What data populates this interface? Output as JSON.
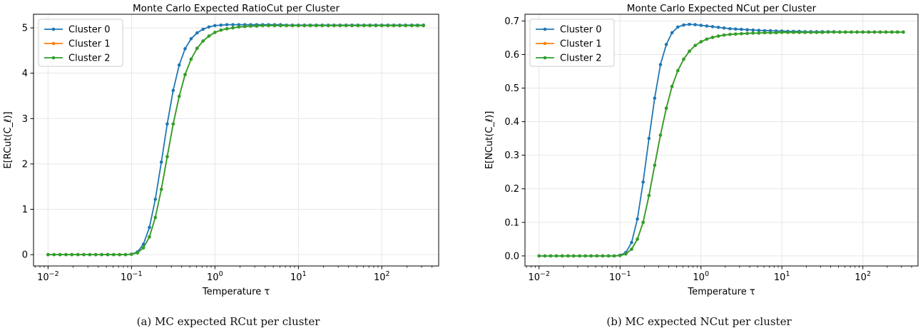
{
  "captions": {
    "left": "(a) MC expected RCut per cluster",
    "right": "(b) MC expected NCut per cluster"
  },
  "colors": {
    "Cluster 0": "#1f77b4",
    "Cluster 1": "#ff7f0e",
    "Cluster 2": "#2ca02c",
    "grid": "#e6e6e6",
    "axis": "#000000"
  },
  "chart_data": [
    {
      "type": "line",
      "title": "Monte Carlo Expected RatioCut per Cluster",
      "xlabel": "Temperature τ",
      "ylabel": "E[RCut(C_ℓ)]",
      "xscale": "log",
      "xlim": [
        0.0067,
        480
      ],
      "ylim": [
        -0.25,
        5.3
      ],
      "xticks": [
        0.01,
        0.1,
        1,
        10,
        100
      ],
      "xtick_labels": [
        [
          "10",
          "−2"
        ],
        [
          "10",
          "−1"
        ],
        [
          "10",
          "0"
        ],
        [
          "10",
          "1"
        ],
        [
          "10",
          "2"
        ]
      ],
      "yticks": [
        0,
        1,
        2,
        3,
        4,
        5
      ],
      "ytick_labels": [
        "0",
        "1",
        "2",
        "3",
        "4",
        "5"
      ],
      "grid": true,
      "legend": "upper left",
      "x": [
        0.01,
        0.0118,
        0.0139,
        0.0164,
        0.0193,
        0.0228,
        0.0268,
        0.0316,
        0.0373,
        0.0439,
        0.0518,
        0.0611,
        0.072,
        0.0848,
        0.1,
        0.118,
        0.139,
        0.164,
        0.193,
        0.228,
        0.268,
        0.316,
        0.373,
        0.439,
        0.518,
        0.611,
        0.72,
        0.848,
        1.0,
        1.18,
        1.39,
        1.64,
        1.93,
        2.28,
        2.68,
        3.16,
        3.73,
        4.39,
        5.18,
        6.11,
        7.2,
        8.48,
        10.0,
        11.8,
        13.9,
        16.4,
        19.3,
        22.8,
        26.8,
        31.6,
        37.3,
        43.9,
        51.8,
        61.1,
        72.0,
        84.8,
        100,
        118,
        139,
        164,
        193,
        228,
        268,
        316
      ],
      "series": [
        {
          "name": "Cluster 0",
          "values": [
            0,
            0,
            0,
            0,
            0,
            0,
            0,
            0,
            0,
            0,
            0,
            0,
            0,
            0,
            0.01,
            0.06,
            0.23,
            0.6,
            1.22,
            2.04,
            2.88,
            3.62,
            4.18,
            4.54,
            4.76,
            4.89,
            4.97,
            5.02,
            5.05,
            5.06,
            5.07,
            5.07,
            5.07,
            5.07,
            5.07,
            5.07,
            5.07,
            5.07,
            5.07,
            5.07,
            5.06,
            5.06,
            5.06,
            5.06,
            5.06,
            5.06,
            5.06,
            5.06,
            5.06,
            5.06,
            5.06,
            5.06,
            5.06,
            5.06,
            5.06,
            5.06,
            5.06,
            5.06,
            5.06,
            5.06,
            5.06,
            5.06,
            5.06,
            5.06
          ]
        },
        {
          "name": "Cluster 1",
          "values": [
            0,
            0,
            0,
            0,
            0,
            0,
            0,
            0,
            0,
            0,
            0,
            0,
            0,
            0,
            0.01,
            0.04,
            0.15,
            0.39,
            0.82,
            1.44,
            2.16,
            2.88,
            3.49,
            3.97,
            4.31,
            4.55,
            4.71,
            4.82,
            4.9,
            4.95,
            4.98,
            5.0,
            5.02,
            5.03,
            5.04,
            5.04,
            5.05,
            5.05,
            5.05,
            5.05,
            5.05,
            5.05,
            5.05,
            5.05,
            5.05,
            5.05,
            5.05,
            5.05,
            5.05,
            5.05,
            5.05,
            5.05,
            5.05,
            5.05,
            5.05,
            5.05,
            5.05,
            5.05,
            5.05,
            5.05,
            5.05,
            5.05,
            5.05,
            5.05
          ]
        },
        {
          "name": "Cluster 2",
          "values": [
            0,
            0,
            0,
            0,
            0,
            0,
            0,
            0,
            0,
            0,
            0,
            0,
            0,
            0,
            0.01,
            0.04,
            0.15,
            0.39,
            0.82,
            1.44,
            2.16,
            2.88,
            3.49,
            3.97,
            4.31,
            4.55,
            4.71,
            4.82,
            4.9,
            4.95,
            4.98,
            5.0,
            5.02,
            5.03,
            5.04,
            5.04,
            5.05,
            5.05,
            5.05,
            5.05,
            5.05,
            5.05,
            5.05,
            5.05,
            5.05,
            5.05,
            5.05,
            5.05,
            5.05,
            5.05,
            5.05,
            5.05,
            5.05,
            5.05,
            5.05,
            5.05,
            5.05,
            5.05,
            5.05,
            5.05,
            5.05,
            5.05,
            5.05,
            5.05
          ]
        }
      ]
    },
    {
      "type": "line",
      "title": "Monte Carlo Expected NCut per Cluster",
      "xlabel": "Temperature τ",
      "ylabel": "E[NCut(C_ℓ)]",
      "xscale": "log",
      "xlim": [
        0.0067,
        480
      ],
      "ylim": [
        -0.03,
        0.72
      ],
      "xticks": [
        0.01,
        0.1,
        1,
        10,
        100
      ],
      "xtick_labels": [
        [
          "10",
          "−2"
        ],
        [
          "10",
          "−1"
        ],
        [
          "10",
          "0"
        ],
        [
          "10",
          "1"
        ],
        [
          "10",
          "2"
        ]
      ],
      "yticks": [
        0.0,
        0.1,
        0.2,
        0.3,
        0.4,
        0.5,
        0.6,
        0.7
      ],
      "ytick_labels": [
        "0.0",
        "0.1",
        "0.2",
        "0.3",
        "0.4",
        "0.5",
        "0.6",
        "0.7"
      ],
      "grid": true,
      "legend": "upper left",
      "x": [
        0.01,
        0.0118,
        0.0139,
        0.0164,
        0.0193,
        0.0228,
        0.0268,
        0.0316,
        0.0373,
        0.0439,
        0.0518,
        0.0611,
        0.072,
        0.0848,
        0.1,
        0.118,
        0.139,
        0.164,
        0.193,
        0.228,
        0.268,
        0.316,
        0.373,
        0.439,
        0.518,
        0.611,
        0.72,
        0.848,
        1.0,
        1.18,
        1.39,
        1.64,
        1.93,
        2.28,
        2.68,
        3.16,
        3.73,
        4.39,
        5.18,
        6.11,
        7.2,
        8.48,
        10.0,
        11.8,
        13.9,
        16.4,
        19.3,
        22.8,
        26.8,
        31.6,
        37.3,
        43.9,
        51.8,
        61.1,
        72.0,
        84.8,
        100,
        118,
        139,
        164,
        193,
        228,
        268,
        316
      ],
      "series": [
        {
          "name": "Cluster 0",
          "values": [
            0,
            0,
            0,
            0,
            0,
            0,
            0,
            0,
            0,
            0,
            0,
            0,
            0,
            0,
            0.002,
            0.01,
            0.04,
            0.11,
            0.22,
            0.35,
            0.47,
            0.57,
            0.63,
            0.665,
            0.682,
            0.688,
            0.69,
            0.689,
            0.687,
            0.685,
            0.683,
            0.681,
            0.679,
            0.677,
            0.676,
            0.675,
            0.674,
            0.673,
            0.672,
            0.671,
            0.671,
            0.67,
            0.67,
            0.669,
            0.669,
            0.669,
            0.668,
            0.668,
            0.668,
            0.668,
            0.668,
            0.668,
            0.667,
            0.667,
            0.667,
            0.667,
            0.667,
            0.667,
            0.667,
            0.667,
            0.667,
            0.667,
            0.667,
            0.667
          ]
        },
        {
          "name": "Cluster 1",
          "values": [
            0,
            0,
            0,
            0,
            0,
            0,
            0,
            0,
            0,
            0,
            0,
            0,
            0,
            0,
            0.001,
            0.006,
            0.02,
            0.05,
            0.1,
            0.18,
            0.27,
            0.36,
            0.44,
            0.505,
            0.552,
            0.586,
            0.61,
            0.627,
            0.638,
            0.646,
            0.651,
            0.655,
            0.658,
            0.66,
            0.661,
            0.662,
            0.663,
            0.664,
            0.664,
            0.665,
            0.665,
            0.665,
            0.666,
            0.666,
            0.666,
            0.666,
            0.666,
            0.666,
            0.666,
            0.666,
            0.667,
            0.667,
            0.667,
            0.667,
            0.667,
            0.667,
            0.667,
            0.667,
            0.667,
            0.667,
            0.667,
            0.667,
            0.667,
            0.667
          ]
        },
        {
          "name": "Cluster 2",
          "values": [
            0,
            0,
            0,
            0,
            0,
            0,
            0,
            0,
            0,
            0,
            0,
            0,
            0,
            0,
            0.001,
            0.006,
            0.02,
            0.05,
            0.1,
            0.18,
            0.27,
            0.36,
            0.44,
            0.505,
            0.552,
            0.586,
            0.61,
            0.627,
            0.638,
            0.646,
            0.651,
            0.655,
            0.658,
            0.66,
            0.661,
            0.662,
            0.663,
            0.664,
            0.664,
            0.665,
            0.665,
            0.665,
            0.666,
            0.666,
            0.666,
            0.666,
            0.666,
            0.666,
            0.666,
            0.666,
            0.667,
            0.667,
            0.667,
            0.667,
            0.667,
            0.667,
            0.667,
            0.667,
            0.667,
            0.667,
            0.667,
            0.667,
            0.667,
            0.667
          ]
        }
      ]
    }
  ]
}
